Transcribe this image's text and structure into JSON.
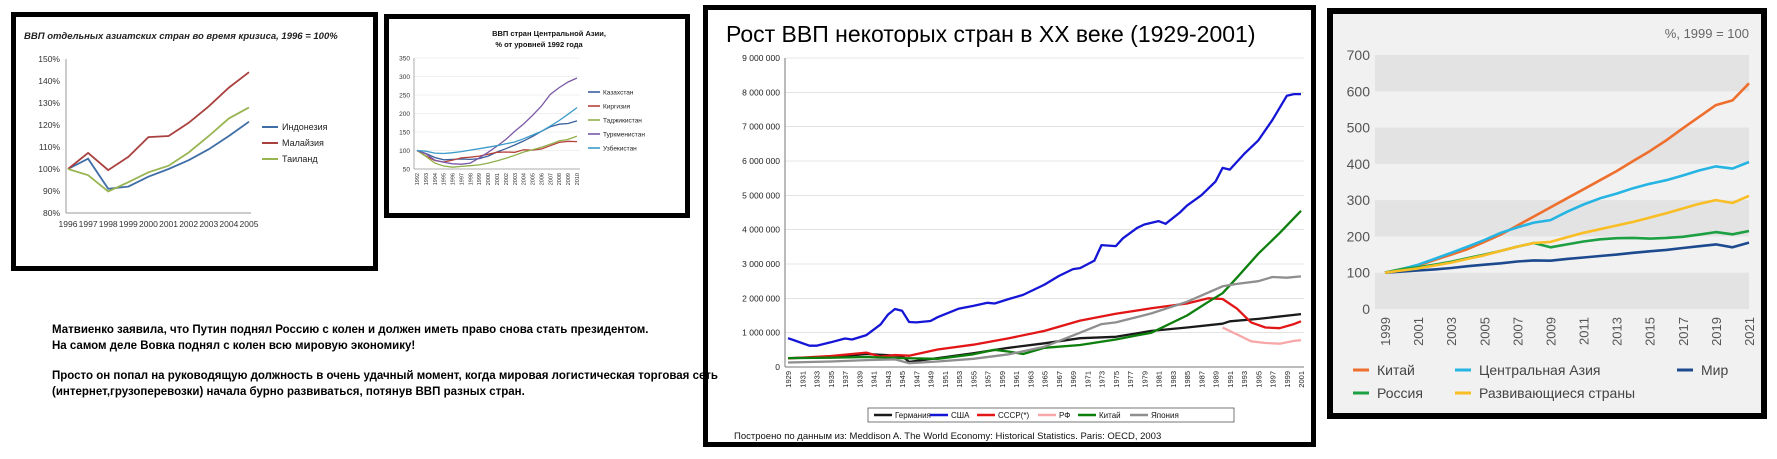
{
  "charts": [
    {
      "title": "ВВП отдельных азиатских стран во время кризиса, 1996 = 100%",
      "type": "line",
      "categories": [
        "1996",
        "1997",
        "1998",
        "1999",
        "2000",
        "2001",
        "2002",
        "2003",
        "2004",
        "2005"
      ],
      "y_ticks": [
        "80%",
        "90%",
        "100%",
        "110%",
        "120%",
        "130%",
        "140%",
        "150%"
      ],
      "ylim": [
        80,
        150
      ],
      "legend_position": "right",
      "series": [
        {
          "name": "Индонезия",
          "color": "#3f6ea6",
          "values": [
            100,
            104.7,
            91,
            92,
            96.5,
            100,
            104,
            109,
            115,
            121.5
          ]
        },
        {
          "name": "Малайзия",
          "color": "#a9413f",
          "values": [
            100,
            107.3,
            99.5,
            105.5,
            114.5,
            115,
            121,
            128.5,
            137,
            144
          ]
        },
        {
          "name": "Таиланд",
          "color": "#98b552",
          "values": [
            100,
            97.2,
            89.8,
            94,
            98.5,
            101.5,
            107.5,
            115,
            123,
            128
          ]
        }
      ]
    },
    {
      "title_line1": "ВВП стран Центральной Азии,",
      "title_line2": "% от уровней 1992 года",
      "type": "line",
      "categories": [
        "1992",
        "1993",
        "1994",
        "1995",
        "1996",
        "1997",
        "1998",
        "1999",
        "2000",
        "2001",
        "2002",
        "2003",
        "2004",
        "2005",
        "2006",
        "2007",
        "2008",
        "2009",
        "2010"
      ],
      "y_ticks": [
        "50",
        "100",
        "150",
        "200",
        "250",
        "300",
        "350"
      ],
      "ylim": [
        50,
        350
      ],
      "legend_position": "right",
      "series": [
        {
          "name": "Казахстан",
          "color": "#3a5f9c",
          "values": [
            100,
            92,
            81,
            75,
            76,
            77,
            76,
            78,
            85,
            96,
            105,
            115,
            126,
            138,
            152,
            164,
            171,
            173,
            180
          ]
        },
        {
          "name": "Киргизия",
          "color": "#b8413a",
          "values": [
            100,
            85,
            73,
            69,
            74,
            80,
            82,
            85,
            90,
            95,
            96,
            95,
            102,
            101,
            104,
            113,
            122,
            125,
            124
          ]
        },
        {
          "name": "Таджикистан",
          "color": "#8fb04a",
          "values": [
            100,
            84,
            66,
            58,
            55,
            57,
            59,
            61,
            66,
            72,
            79,
            87,
            96,
            102,
            109,
            117,
            126,
            130,
            139
          ]
        },
        {
          "name": "Туркменистан",
          "color": "#7a59a6",
          "values": [
            100,
            91,
            74,
            68,
            64,
            63,
            66,
            80,
            95,
            112,
            130,
            152,
            172,
            195,
            220,
            252,
            270,
            285,
            296
          ]
        },
        {
          "name": "Узбекистан",
          "color": "#3b9bc9",
          "values": [
            100,
            98,
            93,
            92,
            94,
            97,
            101,
            105,
            109,
            113,
            118,
            123,
            132,
            142,
            152,
            166,
            181,
            198,
            216
          ]
        }
      ]
    },
    {
      "title": "Рост ВВП некоторых стран в XX веке (1929-2001)",
      "type": "line",
      "y_ticks": [
        "0",
        "1 000 000",
        "2 000 000",
        "3 000 000",
        "4 000 000",
        "5 000 000",
        "6 000 000",
        "7 000 000",
        "8 000 000",
        "9 000 000"
      ],
      "ylim": [
        0,
        9000000
      ],
      "x_tick_labels": [
        "1929",
        "1931",
        "1933",
        "1935",
        "1937",
        "1939",
        "1941",
        "1943",
        "1945",
        "1947",
        "1949",
        "1951",
        "1953",
        "1955",
        "1957",
        "1959",
        "1961",
        "1963",
        "1965",
        "1967",
        "1969",
        "1971",
        "1973",
        "1975",
        "1977",
        "1979",
        "1981",
        "1983",
        "1985",
        "1987",
        "1989",
        "1991",
        "1993",
        "1995",
        "1997",
        "1999",
        "2001"
      ],
      "legend_position": "bottom",
      "source": "Построено по данным из: Meddison A. The World Economy: Historical Statistics. Paris: OECD, 2003",
      "series": [
        {
          "name": "Германия",
          "color": "#1a1a1a",
          "x": [
            1929,
            1935,
            1940,
            1945,
            1946,
            1950,
            1955,
            1960,
            1965,
            1970,
            1975,
            1980,
            1985,
            1990,
            1991,
            1995,
            2001
          ],
          "values": [
            260000,
            280000,
            380000,
            320000,
            150000,
            260000,
            400000,
            560000,
            690000,
            840000,
            880000,
            1050000,
            1150000,
            1260000,
            1330000,
            1400000,
            1540000
          ]
        },
        {
          "name": "США",
          "color": "#1515d6",
          "x": [
            1929,
            1930,
            1932,
            1933,
            1935,
            1937,
            1938,
            1940,
            1942,
            1943,
            1944,
            1945,
            1946,
            1947,
            1949,
            1950,
            1953,
            1955,
            1957,
            1958,
            1960,
            1962,
            1965,
            1967,
            1969,
            1970,
            1972,
            1973,
            1975,
            1976,
            1978,
            1979,
            1981,
            1982,
            1984,
            1985,
            1987,
            1989,
            1990,
            1991,
            1993,
            1995,
            1997,
            1999,
            2000,
            2001
          ],
          "values": [
            840000,
            770000,
            620000,
            620000,
            720000,
            830000,
            800000,
            930000,
            1240000,
            1520000,
            1690000,
            1640000,
            1310000,
            1300000,
            1340000,
            1450000,
            1700000,
            1780000,
            1870000,
            1850000,
            1980000,
            2100000,
            2400000,
            2650000,
            2850000,
            2880000,
            3100000,
            3550000,
            3520000,
            3750000,
            4050000,
            4150000,
            4250000,
            4170000,
            4500000,
            4700000,
            5000000,
            5400000,
            5800000,
            5750000,
            6200000,
            6600000,
            7200000,
            7900000,
            7950000,
            7950000
          ]
        },
        {
          "name": "СССР(*)",
          "color": "#e21616",
          "x": [
            1929,
            1935,
            1940,
            1942,
            1944,
            1946,
            1950,
            1955,
            1960,
            1965,
            1970,
            1975,
            1980,
            1985,
            1988,
            1990,
            1992,
            1994,
            1996,
            1998,
            2000,
            2001
          ],
          "values": [
            250000,
            320000,
            420000,
            300000,
            350000,
            330000,
            510000,
            650000,
            840000,
            1050000,
            1350000,
            1550000,
            1710000,
            1850000,
            2000000,
            1980000,
            1700000,
            1300000,
            1150000,
            1130000,
            1250000,
            1330000
          ]
        },
        {
          "name": "РФ",
          "color": "#f7a7a7",
          "x": [
            1990,
            1992,
            1994,
            1996,
            1998,
            2000,
            2001
          ],
          "values": [
            1150000,
            950000,
            750000,
            700000,
            680000,
            760000,
            780000
          ]
        },
        {
          "name": "Китай",
          "color": "#0d7f0d",
          "x": [
            1929,
            1935,
            1940,
            1945,
            1950,
            1955,
            1958,
            1960,
            1962,
            1965,
            1970,
            1975,
            1978,
            1980,
            1985,
            1988,
            1990,
            1992,
            1995,
            1998,
            2001
          ],
          "values": [
            260000,
            270000,
            290000,
            260000,
            240000,
            370000,
            500000,
            450000,
            380000,
            560000,
            640000,
            800000,
            920000,
            1000000,
            1500000,
            1900000,
            2150000,
            2600000,
            3300000,
            3900000,
            4550000
          ]
        },
        {
          "name": "Япония",
          "color": "#8f8f8f",
          "x": [
            1929,
            1935,
            1940,
            1944,
            1946,
            1950,
            1955,
            1960,
            1965,
            1970,
            1973,
            1975,
            1980,
            1985,
            1990,
            1992,
            1995,
            1997,
            1999,
            2001
          ],
          "values": [
            130000,
            160000,
            200000,
            220000,
            110000,
            160000,
            240000,
            370000,
            590000,
            1000000,
            1250000,
            1300000,
            1560000,
            1900000,
            2350000,
            2420000,
            2500000,
            2620000,
            2600000,
            2640000
          ]
        }
      ]
    },
    {
      "unit_label": "%, 1999 = 100",
      "type": "line",
      "categories": [
        "1999",
        "2000",
        "2001",
        "2002",
        "2003",
        "2004",
        "2005",
        "2006",
        "2007",
        "2008",
        "2009",
        "2010",
        "2011",
        "2012",
        "2013",
        "2014",
        "2015",
        "2016",
        "2017",
        "2018",
        "2019",
        "2020",
        "2021"
      ],
      "x_tick_labels": [
        "1999",
        "2001",
        "2003",
        "2005",
        "2007",
        "2009",
        "2011",
        "2013",
        "2015",
        "2017",
        "2019",
        "2021"
      ],
      "y_ticks": [
        "0",
        "100",
        "200",
        "300",
        "400",
        "500",
        "600",
        "700"
      ],
      "ylim": [
        0,
        700
      ],
      "legend_position": "bottom",
      "series": [
        {
          "name": "Китай",
          "color": "#ee6f2d",
          "values": [
            100,
            110,
            120,
            135,
            150,
            165,
            185,
            205,
            230,
            255,
            280,
            305,
            330,
            355,
            380,
            408,
            435,
            465,
            498,
            530,
            562,
            575,
            622
          ]
        },
        {
          "name": "Центральная Азия",
          "color": "#26b4e3",
          "values": [
            100,
            110,
            122,
            138,
            155,
            172,
            190,
            210,
            225,
            238,
            245,
            268,
            288,
            305,
            318,
            333,
            345,
            355,
            368,
            382,
            393,
            387,
            405
          ]
        },
        {
          "name": "Мир",
          "color": "#1d4a8e",
          "values": [
            100,
            103,
            106,
            109,
            113,
            118,
            122,
            126,
            131,
            134,
            133,
            138,
            142,
            146,
            150,
            155,
            159,
            163,
            168,
            173,
            178,
            170,
            183
          ]
        },
        {
          "name": "Россия",
          "color": "#1d9f43",
          "values": [
            100,
            110,
            115,
            122,
            130,
            140,
            150,
            160,
            172,
            182,
            170,
            178,
            186,
            192,
            195,
            196,
            194,
            196,
            199,
            205,
            212,
            206,
            215
          ]
        },
        {
          "name": "Развивающиеся страны",
          "color": "#f9bd26",
          "values": [
            100,
            106,
            112,
            120,
            128,
            138,
            148,
            160,
            172,
            182,
            185,
            198,
            210,
            220,
            230,
            240,
            252,
            264,
            277,
            290,
            300,
            292,
            312
          ]
        }
      ]
    }
  ],
  "caption": {
    "line1": "Матвиенко заявила, что Путин поднял Россию с колен и должен иметь право снова стать президентом.",
    "line2": "На самом деле Вовка поднял с колен всю мировую экономику!",
    "line3": "Просто он попал на руководящую должность в очень удачный момент, когда мировая логистическая торговая сеть",
    "line4": "(интернет,грузоперевозки)  начала бурно развиваться, потянув ВВП разных стран."
  }
}
